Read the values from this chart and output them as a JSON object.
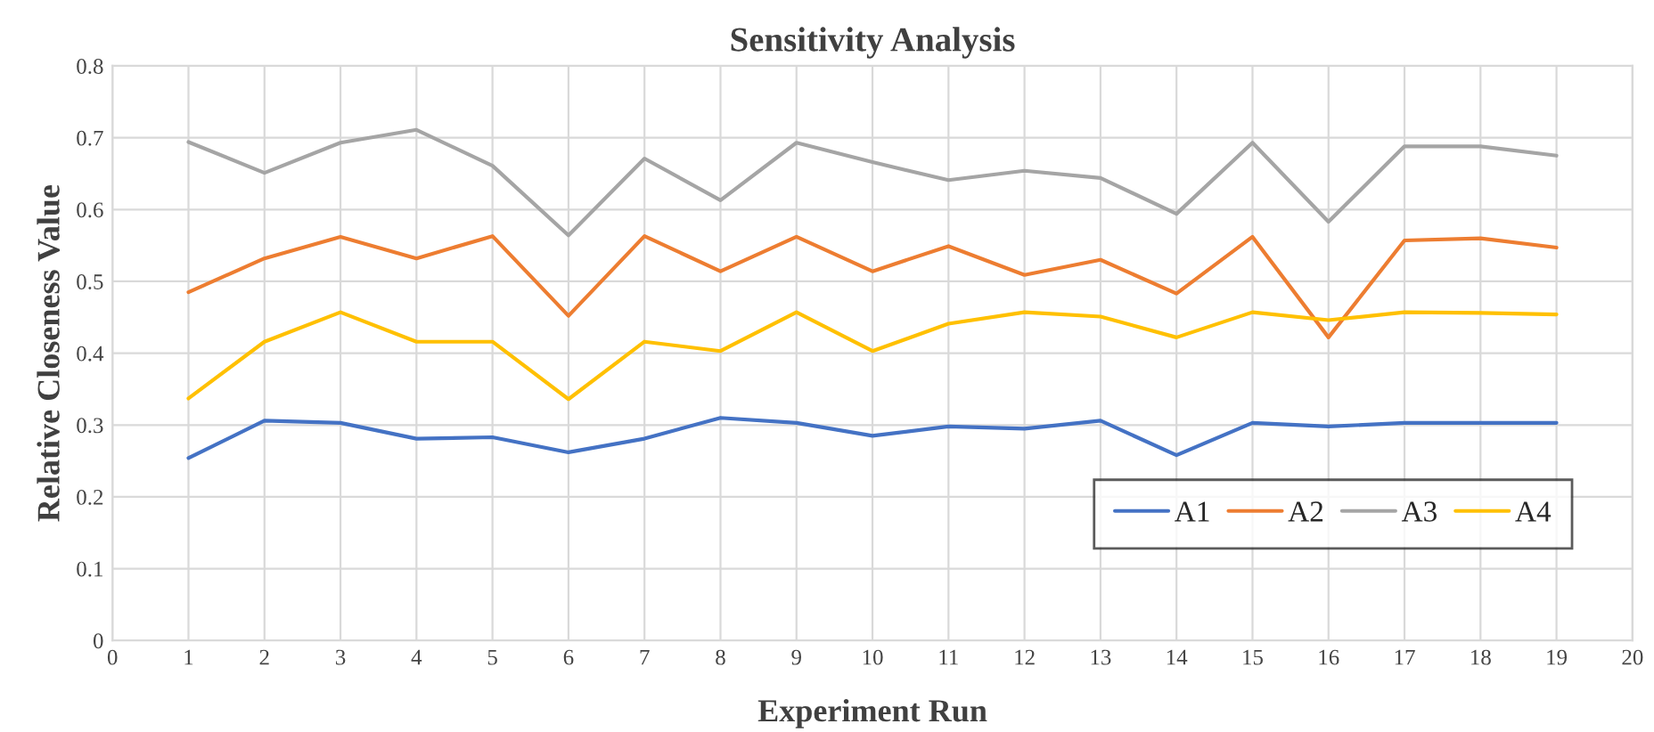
{
  "chart_data": {
    "type": "line",
    "title": "Sensitivity Analysis",
    "xlabel": "Experiment Run",
    "ylabel": "Relative Closeness Value",
    "x": [
      1,
      2,
      3,
      4,
      5,
      6,
      7,
      8,
      9,
      10,
      11,
      12,
      13,
      14,
      15,
      16,
      17,
      18,
      19
    ],
    "series": [
      {
        "name": "A1",
        "color": "#4472c4",
        "values": [
          0.254,
          0.306,
          0.303,
          0.281,
          0.283,
          0.262,
          0.281,
          0.31,
          0.303,
          0.285,
          0.298,
          0.295,
          0.306,
          0.258,
          0.303,
          0.298,
          0.303,
          0.303,
          0.303
        ]
      },
      {
        "name": "A2",
        "color": "#ed7d31",
        "values": [
          0.485,
          0.532,
          0.562,
          0.532,
          0.563,
          0.452,
          0.563,
          0.514,
          0.562,
          0.514,
          0.549,
          0.509,
          0.53,
          0.483,
          0.562,
          0.422,
          0.557,
          0.56,
          0.547
        ]
      },
      {
        "name": "A3",
        "color": "#a5a5a5",
        "values": [
          0.694,
          0.651,
          0.693,
          0.711,
          0.661,
          0.564,
          0.671,
          0.613,
          0.693,
          0.666,
          0.641,
          0.654,
          0.644,
          0.594,
          0.693,
          0.583,
          0.688,
          0.688,
          0.675
        ]
      },
      {
        "name": "A4",
        "color": "#ffc000",
        "values": [
          0.337,
          0.416,
          0.457,
          0.416,
          0.416,
          0.336,
          0.416,
          0.403,
          0.457,
          0.403,
          0.441,
          0.457,
          0.451,
          0.422,
          0.457,
          0.446,
          0.457,
          0.456,
          0.454
        ]
      }
    ],
    "xlim": [
      0,
      20
    ],
    "xticks": [
      0,
      1,
      2,
      3,
      4,
      5,
      6,
      7,
      8,
      9,
      10,
      11,
      12,
      13,
      14,
      15,
      16,
      17,
      18,
      19,
      20
    ],
    "ylim": [
      0,
      0.8
    ],
    "yticks": [
      0,
      0.1,
      0.2,
      0.3,
      0.4,
      0.5,
      0.6,
      0.7,
      0.8
    ],
    "grid": true,
    "legend": "right",
    "marker": "none",
    "line_style": "solid"
  }
}
